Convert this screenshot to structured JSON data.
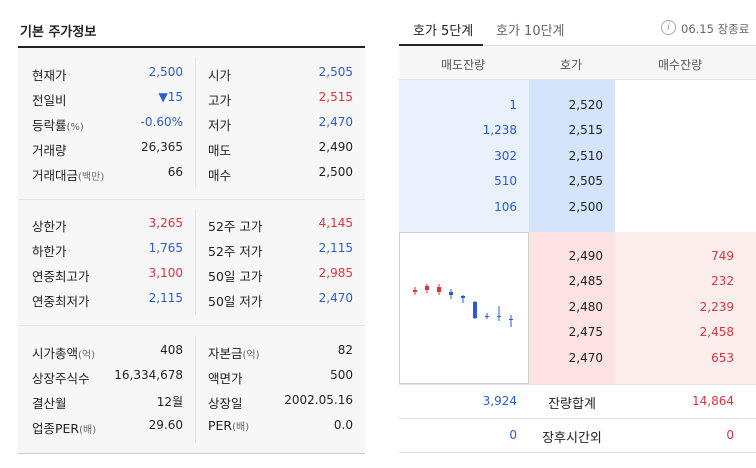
{
  "left": {
    "title": "기본 주가정보",
    "section1": [
      {
        "l1": "현재가",
        "v1": "2,500",
        "c1": "blue",
        "l2": "시가",
        "v2": "2,505",
        "c2": "blue"
      },
      {
        "l1": "전일비",
        "v1": "▼15",
        "c1": "blue",
        "l2": "고가",
        "v2": "2,515",
        "c2": "red"
      },
      {
        "l1": "등락률",
        "u1": "(%)",
        "v1": "-0.60%",
        "c1": "blue",
        "l2": "저가",
        "v2": "2,470",
        "c2": "blue"
      },
      {
        "l1": "거래량",
        "v1": "26,365",
        "c1": "dark",
        "l2": "매도",
        "v2": "2,490",
        "c2": "dark"
      },
      {
        "l1": "거래대금",
        "u1": "(백만)",
        "v1": "66",
        "c1": "dark",
        "l2": "매수",
        "v2": "2,500",
        "c2": "dark"
      }
    ],
    "section2": [
      {
        "l1": "상한가",
        "v1": "3,265",
        "c1": "red",
        "l2": "52주 고가",
        "v2": "4,145",
        "c2": "red"
      },
      {
        "l1": "하한가",
        "v1": "1,765",
        "c1": "blue",
        "l2": "52주 저가",
        "v2": "2,115",
        "c2": "blue"
      },
      {
        "l1": "연중최고가",
        "v1": "3,100",
        "c1": "red",
        "l2": "50일 고가",
        "v2": "2,985",
        "c2": "red"
      },
      {
        "l1": "연중최저가",
        "v1": "2,115",
        "c1": "blue",
        "l2": "50일 저가",
        "v2": "2,470",
        "c2": "blue"
      }
    ],
    "section3": [
      {
        "l1": "시가총액",
        "u1": "(억)",
        "v1": "408",
        "c1": "dark",
        "l2": "자본금",
        "u2": "(억)",
        "v2": "82",
        "c2": "dark"
      },
      {
        "l1": "상장주식수",
        "v1": "16,334,678",
        "c1": "dark",
        "l2": "액면가",
        "v2": "500",
        "c2": "dark"
      },
      {
        "l1": "결산월",
        "v1": "12월",
        "c1": "dark",
        "l2": "상장일",
        "v2": "2002.05.16",
        "c2": "dark"
      },
      {
        "l1": "업종PER",
        "u1": "(배)",
        "v1": "29.60",
        "c1": "dark",
        "l2": "PER",
        "u2": "(배)",
        "v2": "0.0",
        "c2": "dark"
      }
    ]
  },
  "right": {
    "tabs": [
      "호가 5단계",
      "호가 10단계"
    ],
    "info_icon_glyph": "i",
    "close_info": "06.15 장종료",
    "headers": [
      "매도잔량",
      "호가",
      "매수잔량"
    ],
    "asks": [
      {
        "qty": "1",
        "price": "2,520"
      },
      {
        "qty": "1,238",
        "price": "2,515"
      },
      {
        "qty": "302",
        "price": "2,510"
      },
      {
        "qty": "510",
        "price": "2,505"
      },
      {
        "qty": "106",
        "price": "2,500"
      }
    ],
    "bids": [
      {
        "price": "2,490",
        "qty": "749"
      },
      {
        "price": "2,485",
        "qty": "232"
      },
      {
        "price": "2,480",
        "qty": "2,239"
      },
      {
        "price": "2,475",
        "qty": "2,458"
      },
      {
        "price": "2,470",
        "qty": "653"
      }
    ],
    "summary": [
      {
        "left": "3,924",
        "label": "잔량합계",
        "right": "14,864"
      },
      {
        "left": "0",
        "label": "장후시간외",
        "right": "0"
      }
    ],
    "colors": {
      "up": "#e0323c",
      "down": "#2a5bd7"
    }
  }
}
